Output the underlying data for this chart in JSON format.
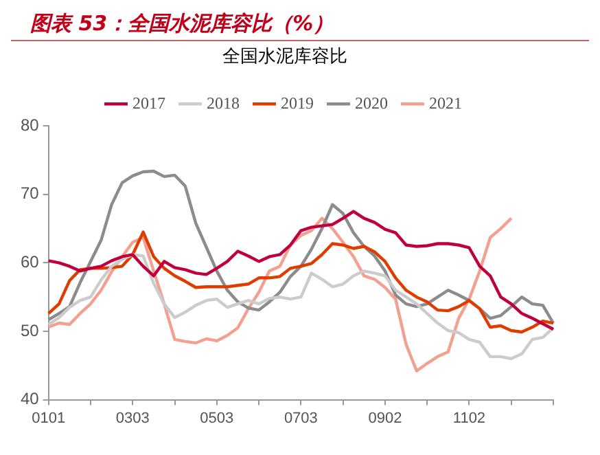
{
  "chart_data": {
    "type": "line",
    "title": "图表 53：全国水泥库容比（%）",
    "subtitle": "全国水泥库容比",
    "categories": [
      "0101",
      null,
      null,
      null,
      null,
      null,
      null,
      null,
      "0303",
      null,
      null,
      null,
      null,
      null,
      null,
      null,
      "0503",
      null,
      null,
      null,
      null,
      null,
      null,
      null,
      "0703",
      null,
      null,
      null,
      null,
      null,
      null,
      null,
      "0902",
      null,
      null,
      null,
      null,
      null,
      null,
      null,
      "1102",
      null,
      null,
      null,
      null,
      null,
      null,
      null,
      null
    ],
    "series": [
      {
        "name": "2017",
        "color": "#c0003c",
        "values": [
          60.3,
          60,
          59.5,
          58.8,
          59.2,
          59.5,
          60.3,
          60.9,
          61.2,
          59.5,
          58.1,
          60.2,
          59.3,
          59,
          58.5,
          58.3,
          59.2,
          60.2,
          61.7,
          61,
          60.2,
          60.9,
          61.2,
          62.6,
          64.7,
          65.2,
          65.4,
          65.6,
          66.5,
          67.5,
          66.5,
          65.9,
          64.9,
          64.4,
          62.6,
          62.4,
          62.5,
          62.8,
          62.8,
          62.6,
          62.2,
          59.5,
          58.1,
          55,
          54,
          52.6,
          51.9,
          51.1,
          50.3
        ]
      },
      {
        "name": "2018",
        "color": "#cccccc",
        "values": [
          51,
          52,
          53.5,
          54.5,
          55,
          57.5,
          59.5,
          60.5,
          61.2,
          61,
          57,
          54,
          52,
          52.8,
          53.8,
          54.5,
          54.7,
          53.5,
          54,
          54.5,
          54,
          54.8,
          55,
          54.7,
          55,
          58.5,
          57.6,
          56.5,
          56.9,
          58.1,
          58.8,
          58.5,
          58.1,
          56,
          55,
          54,
          52.6,
          51.2,
          50.1,
          49.8,
          48.8,
          48.4,
          46.3,
          46.3,
          46,
          46.7,
          48.8,
          49.1,
          50.5
        ]
      },
      {
        "name": "2019",
        "color": "#e03c00",
        "values": [
          52.6,
          54,
          57.4,
          59,
          59.2,
          59.2,
          59.3,
          59.5,
          61.2,
          64.5,
          60.9,
          59.2,
          58.1,
          57.3,
          56.4,
          56.5,
          56.5,
          56.5,
          56.7,
          56.9,
          57.8,
          57.8,
          58,
          59.2,
          59.5,
          59.9,
          61.2,
          62.8,
          62.6,
          62.1,
          62.4,
          61.6,
          60.2,
          57.8,
          56,
          55,
          54.3,
          53.1,
          53,
          53.6,
          54.5,
          53.3,
          50.6,
          50.8,
          50.1,
          49.9,
          50.6,
          51.5,
          51.2
        ]
      },
      {
        "name": "2020",
        "color": "#8c8c8c",
        "values": [
          51.7,
          52.6,
          53.6,
          57.1,
          60.2,
          63.3,
          68.5,
          71.7,
          72.7,
          73.3,
          73.4,
          72.6,
          72.8,
          71.2,
          65.8,
          62.3,
          58.8,
          56,
          54.3,
          53.4,
          53.1,
          54.3,
          55.7,
          58,
          59.5,
          62,
          65,
          68.5,
          67.2,
          64.4,
          62.4,
          61,
          58.8,
          55.3,
          54,
          53.6,
          54,
          55,
          56,
          55.3,
          54.5,
          53.3,
          51.9,
          52.3,
          53.6,
          55,
          54,
          53.8,
          51.2
        ]
      },
      {
        "name": "2021",
        "color": "#f4a090",
        "values": [
          50.6,
          51.2,
          51,
          52.6,
          54,
          56,
          58.7,
          60.9,
          63,
          63.7,
          58.8,
          54,
          48.8,
          48.5,
          48.3,
          48.9,
          48.6,
          49.4,
          50.5,
          53.3,
          55.7,
          58.8,
          59.5,
          62.6,
          64,
          64.7,
          66.5,
          65,
          63,
          60.9,
          58.1,
          57.6,
          56.4,
          54.7,
          48.1,
          44.2,
          45.3,
          46.3,
          47,
          51.9,
          54.7,
          58.8,
          63.7,
          65,
          66.5,
          null,
          null,
          null,
          null
        ]
      }
    ],
    "ylim": [
      40,
      80
    ],
    "yticks": [
      40,
      50,
      60,
      70,
      80
    ],
    "grid": false,
    "legend": "top",
    "marker": "none",
    "line_style": "solid"
  }
}
